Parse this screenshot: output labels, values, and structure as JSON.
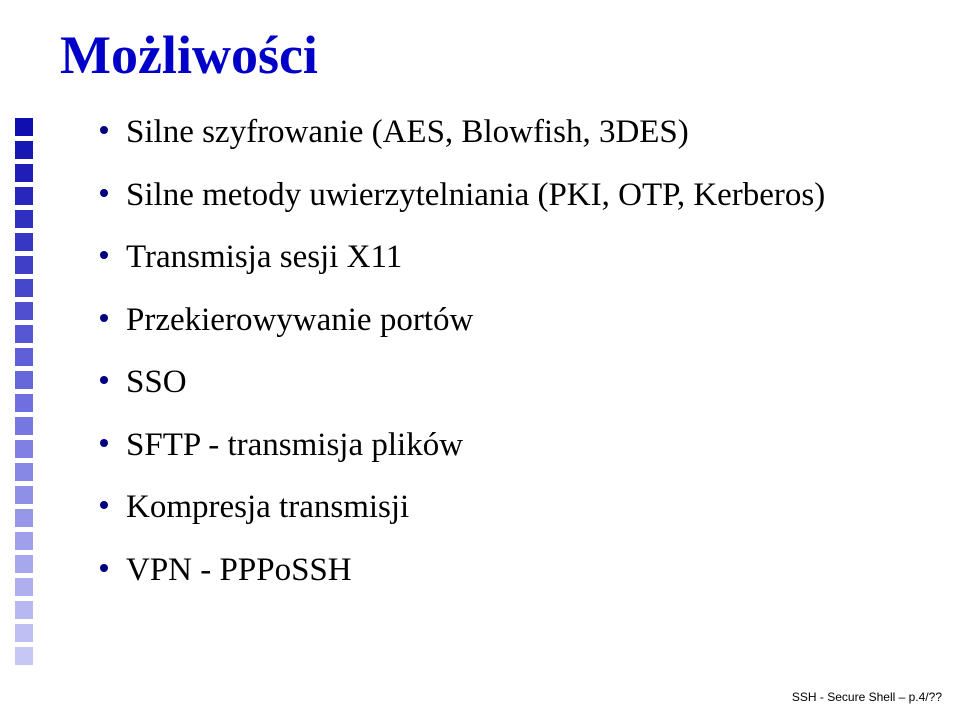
{
  "title": "Możliwości",
  "title_color": "#0000c8",
  "bullets": [
    "Silne szyfrowanie (AES, Blowfish, 3DES)",
    "Silne metody uwierzytelniania (PKI, OTP, Kerberos)",
    "Transmisja sesji X11",
    "Przekierowywanie portów",
    "SSO",
    "SFTP - transmisja plików",
    "Kompresja transmisji",
    "VPN - PPPoSSH"
  ],
  "bullet_item": {
    "dot_color": "#000080",
    "text_color": "#000000",
    "fontsize": 33
  },
  "side_decoration": {
    "count": 24,
    "colors_top_to_bottom": [
      "#0f0fb0",
      "#1717b4",
      "#1f1fb8",
      "#2727bc",
      "#2f2fc0",
      "#3737c4",
      "#3f3fc8",
      "#4747cc",
      "#4f4fd0",
      "#5757d4",
      "#5f5fd8",
      "#6767dc",
      "#6f6fe0",
      "#7777e2",
      "#7f7fe4",
      "#8787e6",
      "#8f8fe8",
      "#9797ea",
      "#9f9fec",
      "#a7a7ee",
      "#afaff0",
      "#b7b7f2",
      "#bfbff4",
      "#c7c7f6"
    ]
  },
  "footer": "SSH - Secure Shell – p.4/??",
  "background_color": "#ffffff"
}
